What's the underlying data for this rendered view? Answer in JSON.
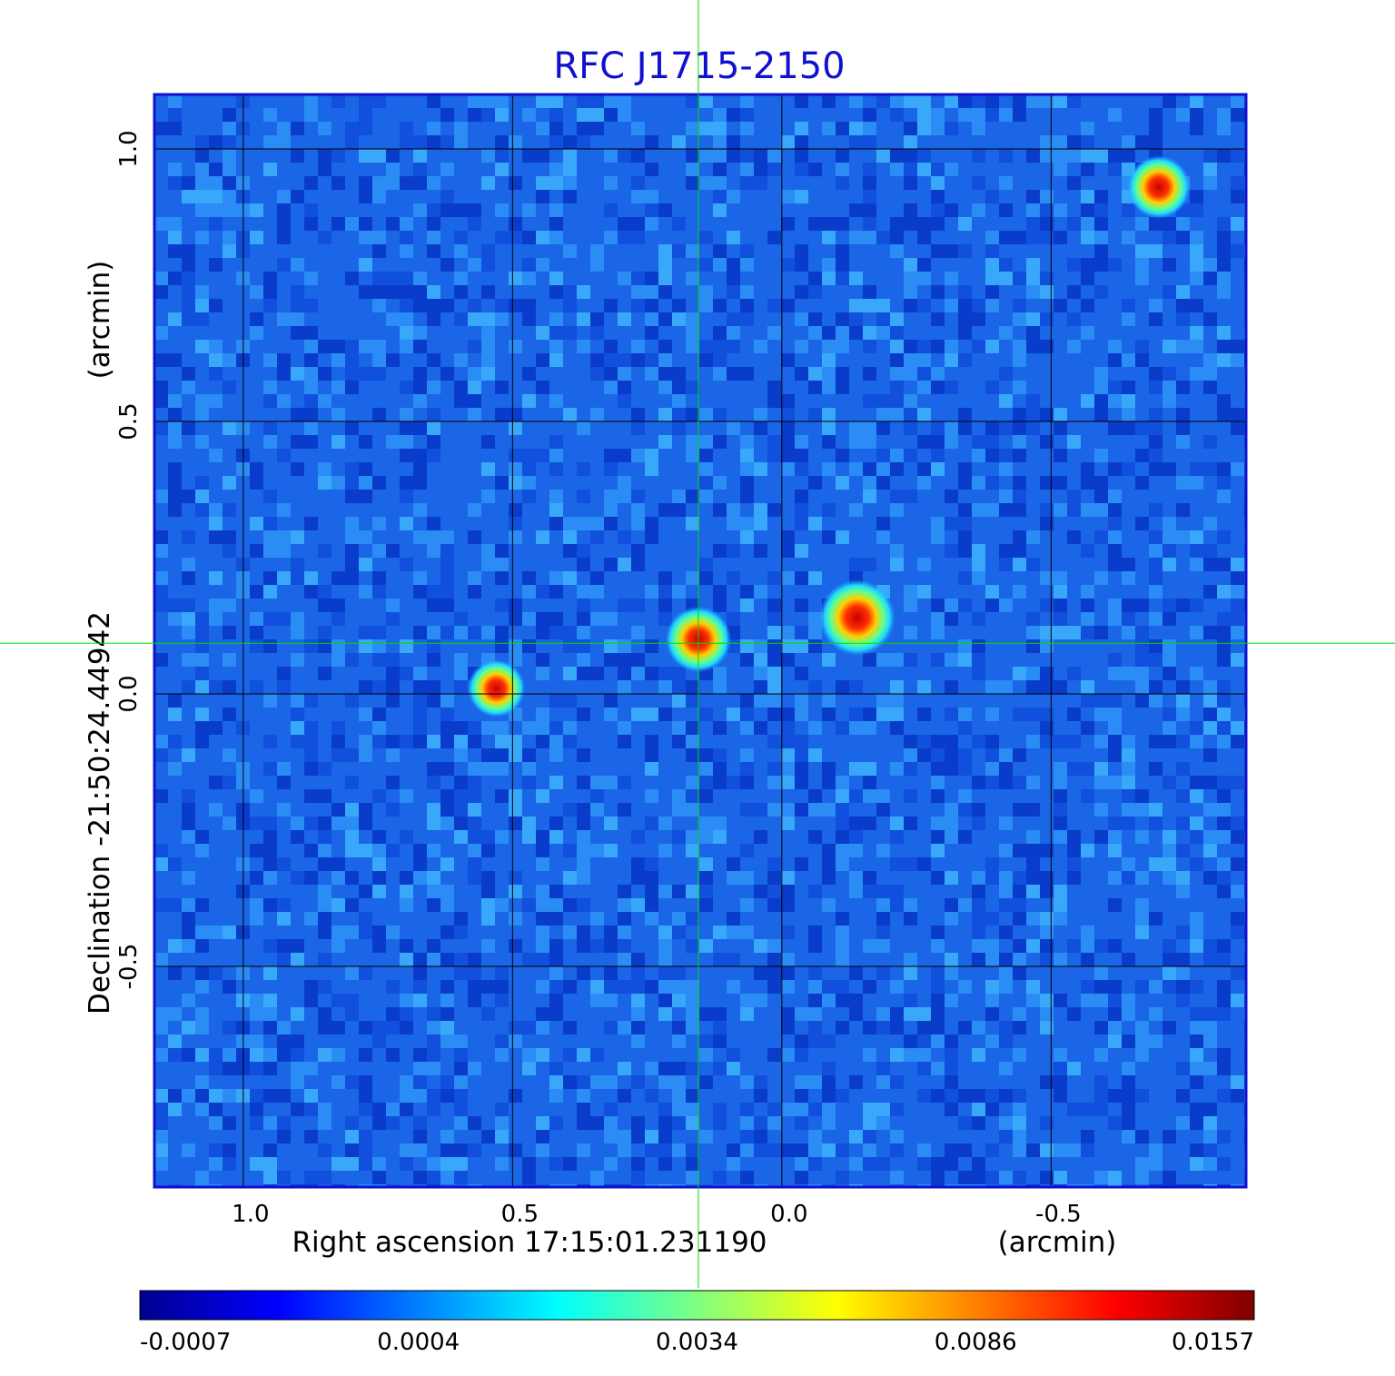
{
  "chart_data": {
    "type": "heatmap",
    "title": "RFC J1715-2150",
    "title_color": "#1010d0",
    "colormap": "jet",
    "xaxis": {
      "label": "Right ascension  17:15:01.231190",
      "unit_label": "(arcmin)",
      "ticks": [
        1.0,
        0.5,
        0.0,
        -0.5
      ],
      "tick_labels": [
        "1.0",
        "0.5",
        "0.0",
        "-0.5"
      ],
      "range": [
        1.165,
        -0.862
      ]
    },
    "yaxis": {
      "label": "Declination  -21:50:24.44942",
      "unit_label": "(arcmin)",
      "ticks": [
        1.0,
        0.5,
        0.0,
        -0.5
      ],
      "tick_labels": [
        "1.0",
        "0.5",
        "0.0",
        "-0.5"
      ],
      "range": [
        -0.905,
        1.1
      ]
    },
    "grid": true,
    "crosshair": {
      "x": 0.155,
      "y": 0.093,
      "color": "#00dd00"
    },
    "colorbar": {
      "position": "bottom",
      "tick_labels": [
        "-0.0007",
        "0.0004",
        "0.0034",
        "0.0086",
        "0.0157"
      ],
      "colors": [
        "#00008f",
        "#0000ff",
        "#0080ff",
        "#00ffff",
        "#80ff80",
        "#ffff00",
        "#ff8000",
        "#ff0000",
        "#800000"
      ]
    },
    "background_color": "#1a66e6",
    "sources": [
      {
        "ra": -0.14,
        "dec": 0.14,
        "peak": 0.0157
      },
      {
        "ra": 0.155,
        "dec": 0.1,
        "peak": 0.012
      },
      {
        "ra": 0.53,
        "dec": 0.01,
        "peak": 0.009
      },
      {
        "ra": -0.7,
        "dec": 0.93,
        "peak": 0.011
      }
    ]
  }
}
